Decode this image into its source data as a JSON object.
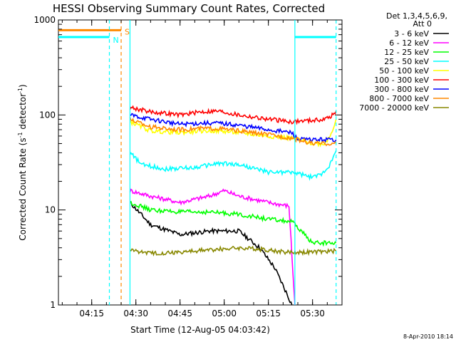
{
  "chart_data": {
    "type": "line",
    "title": "HESSI Observing Summary Count Rates, Corrected",
    "xlabel": "Start Time (12-Aug-05 04:03:42)",
    "ylabel_main": "Corrected Count Rate (s",
    "ylabel_sup1": "-1",
    "ylabel_mid": " detector",
    "ylabel_sup2": "-1",
    "ylabel_end": ")",
    "y_scale": "log",
    "ylim": [
      1,
      1000
    ],
    "xlim": [
      "04:03:42",
      "05:40:00"
    ],
    "x_ticks": [
      "04:15",
      "04:30",
      "04:45",
      "05:00",
      "05:15",
      "05:30"
    ],
    "y_ticks": [
      "1",
      "10",
      "100",
      "1000"
    ],
    "grid": false,
    "legend_position": "right",
    "legend_header": [
      "Det 1,3,4,5,6,9,",
      "Att 0"
    ],
    "series": [
      {
        "name": "3 - 6 keV",
        "color": "#000000",
        "t": [
          "04:28",
          "04:35",
          "04:45",
          "04:55",
          "05:05",
          "05:12",
          "05:17",
          "05:20",
          "05:23"
        ],
        "values": [
          12,
          7,
          5.5,
          6,
          6,
          4,
          2.5,
          1.6,
          1
        ]
      },
      {
        "name": "6 - 12 keV",
        "color": "#ff00ff",
        "t": [
          "04:28",
          "04:35",
          "04:45",
          "04:55",
          "05:00",
          "05:05",
          "05:15",
          "05:22",
          "05:24"
        ],
        "values": [
          16,
          14,
          12,
          14,
          16,
          14,
          12,
          11,
          1
        ]
      },
      {
        "name": "12 - 25 keV",
        "color": "#00ff00",
        "t": [
          "04:28",
          "04:35",
          "04:45",
          "04:55",
          "05:05",
          "05:15",
          "05:23",
          "05:30",
          "05:38"
        ],
        "values": [
          12,
          10,
          9.5,
          9.5,
          9,
          8,
          7.5,
          4.5,
          4.5
        ]
      },
      {
        "name": "25 - 50 keV",
        "color": "#00ffff",
        "t": [
          "04:28",
          "04:32",
          "04:40",
          "04:50",
          "04:58",
          "05:05",
          "05:15",
          "05:23",
          "05:30",
          "05:33",
          "05:36",
          "05:38"
        ],
        "values": [
          40,
          30,
          27,
          28,
          31,
          30,
          25,
          25,
          22,
          24,
          30,
          42
        ]
      },
      {
        "name": "50 - 100 keV",
        "color": "#ffff00",
        "t": [
          "04:28",
          "04:35",
          "04:45",
          "04:52",
          "04:58",
          "05:05",
          "05:15",
          "05:23",
          "05:30",
          "05:34",
          "05:36",
          "05:38"
        ],
        "values": [
          85,
          68,
          65,
          68,
          68,
          65,
          60,
          57,
          50,
          50,
          60,
          90
        ]
      },
      {
        "name": "100 - 300 keV",
        "color": "#ff0000",
        "t": [
          "04:28",
          "04:35",
          "04:45",
          "04:52",
          "04:58",
          "05:05",
          "05:15",
          "05:23",
          "05:30",
          "05:34",
          "05:37",
          "05:38"
        ],
        "values": [
          120,
          108,
          100,
          108,
          110,
          100,
          90,
          85,
          88,
          90,
          100,
          110
        ]
      },
      {
        "name": "300 - 800 keV",
        "color": "#0000ff",
        "t": [
          "04:28",
          "04:35",
          "04:45",
          "04:52",
          "04:58",
          "05:05",
          "05:15",
          "05:23",
          "05:25",
          "05:30",
          "05:38"
        ],
        "values": [
          100,
          90,
          80,
          82,
          82,
          78,
          70,
          65,
          55,
          55,
          55
        ]
      },
      {
        "name": "800 - 7000 keV",
        "color": "#ff8800",
        "t": [
          "04:28",
          "04:35",
          "04:45",
          "04:52",
          "04:58",
          "05:05",
          "05:15",
          "05:23",
          "05:30",
          "05:38"
        ],
        "values": [
          90,
          75,
          70,
          72,
          72,
          68,
          62,
          57,
          50,
          50
        ]
      },
      {
        "name": "7000 - 20000 keV",
        "color": "#888800",
        "t": [
          "04:28",
          "04:35",
          "04:45",
          "04:55",
          "05:05",
          "05:15",
          "05:20",
          "05:30",
          "05:38"
        ],
        "values": [
          3.8,
          3.5,
          3.6,
          3.8,
          4,
          3.8,
          3.6,
          3.6,
          3.7
        ]
      }
    ],
    "attenuator_segments": [
      {
        "t": [
          "04:03:42",
          "04:25"
        ],
        "value": 780,
        "color": "#ff8800"
      }
    ],
    "night_segments": [
      {
        "t": [
          "04:03:42",
          "04:21"
        ],
        "value": 660,
        "color": "#00ffff"
      },
      {
        "t": [
          "05:24",
          "05:38"
        ],
        "value": 660,
        "color": "#00ffff"
      }
    ],
    "vlines": [
      {
        "t": "04:21",
        "color": "#00ffff",
        "dash": true
      },
      {
        "t": "04:25",
        "color": "#ff8800",
        "dash": true
      },
      {
        "t": "04:28",
        "color": "#00ffff",
        "dash": false
      },
      {
        "t": "05:24",
        "color": "#00ffff",
        "dash": false
      },
      {
        "t": "05:38",
        "color": "#00ffff",
        "dash": true
      }
    ],
    "annotations": [
      {
        "text": "S",
        "color": "#ff8800",
        "t": "04:25",
        "value": 780
      },
      {
        "text": "N",
        "color": "#00ffff",
        "t": "04:21",
        "value": 640
      }
    ],
    "footer_timestamp": "8-Apr-2010 18:14"
  }
}
